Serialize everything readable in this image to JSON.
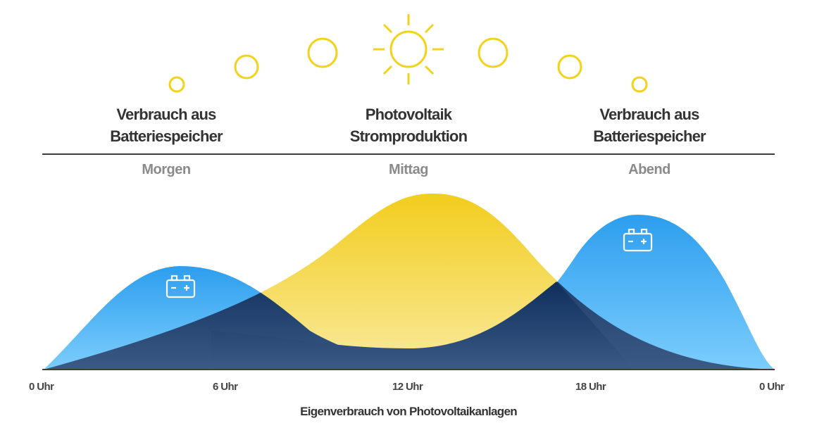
{
  "headings": {
    "left": [
      "Verbrauch aus",
      "Batteriespeicher"
    ],
    "center": [
      "Photovoltaik",
      "Stromproduktion"
    ],
    "right": [
      "Verbrauch aus",
      "Batteriespeicher"
    ]
  },
  "periods": {
    "morning": "Morgen",
    "noon": "Mittag",
    "evening": "Abend"
  },
  "ticks": [
    "0 Uhr",
    "6 Uhr",
    "12 Uhr",
    "18 Uhr",
    "0 Uhr"
  ],
  "caption": "Eigenverbrauch von Photovoltaikanlagen",
  "colors": {
    "sun": "#f3d21b",
    "battery_blue_top": "#2d9eee",
    "battery_blue_bottom": "#7ccdfc",
    "pv_yellow_top": "#f2cd1d",
    "pv_yellow_bottom": "#f9ea9e",
    "overlap_dark_top": "#0e2e5c",
    "overlap_dark_bottom": "#3b5a85",
    "text": "#333333",
    "period_text": "#8a8a8a"
  },
  "icons": {
    "sun": "sun-icon",
    "battery": "battery-icon"
  }
}
